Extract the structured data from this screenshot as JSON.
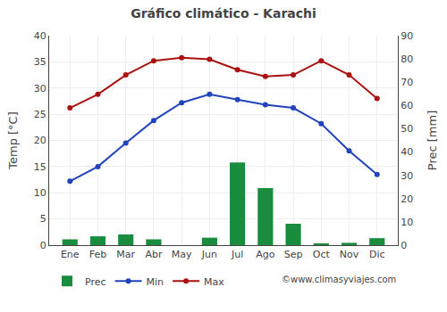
{
  "chart_data": {
    "type": "bar",
    "title": "Gráfico climático - Karachi",
    "categories": [
      "Ene",
      "Feb",
      "Mar",
      "Abr",
      "May",
      "Jun",
      "Jul",
      "Ago",
      "Sep",
      "Oct",
      "Nov",
      "Dic"
    ],
    "series": [
      {
        "name": "Prec",
        "type": "bar",
        "axis": "y2",
        "color": "#1a8c3e",
        "values": [
          2.5,
          3.8,
          4.6,
          2.5,
          0.0,
          3.2,
          35.5,
          24.5,
          9.2,
          0.6,
          1.0,
          3.0
        ]
      },
      {
        "name": "Min",
        "type": "line",
        "color": "#2244bb",
        "marker": "circle",
        "values": [
          12.2,
          15.0,
          19.5,
          23.8,
          27.2,
          28.8,
          27.8,
          26.8,
          26.2,
          23.2,
          18.0,
          13.5
        ]
      },
      {
        "name": "Max",
        "type": "line",
        "color": "#aa1111",
        "marker": "circle",
        "values": [
          26.2,
          28.8,
          32.5,
          35.2,
          35.8,
          35.5,
          33.5,
          32.2,
          32.5,
          35.2,
          32.5,
          28.0
        ]
      }
    ],
    "ylabel": "Temp [°C]",
    "y2label": "Prec [mm]",
    "ylim": [
      0,
      40
    ],
    "yticks": [
      0,
      5,
      10,
      15,
      20,
      25,
      30,
      35,
      40
    ],
    "y2lim": [
      0,
      90
    ],
    "y2ticks": [
      0,
      10,
      20,
      30,
      40,
      50,
      60,
      70,
      80,
      90
    ],
    "grid": true,
    "legend": "bottom",
    "annotations": [
      "©www.climasyviajes.com"
    ]
  }
}
